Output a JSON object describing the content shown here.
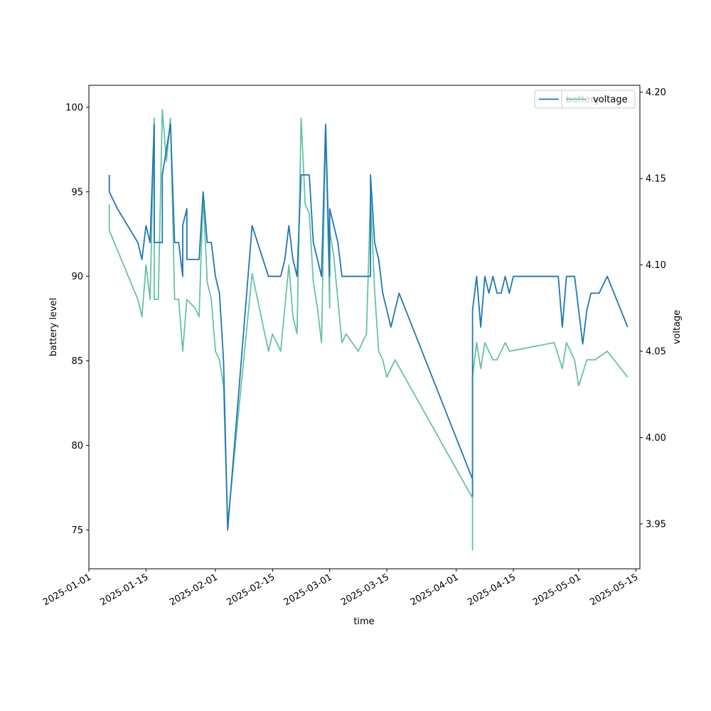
{
  "chart_data": {
    "type": "line",
    "xlabel": "time",
    "ylabel_left": "battery level",
    "ylabel_right": "voltage",
    "x_ticks": [
      "2025-01-01",
      "2025-01-15",
      "2025-02-01",
      "2025-02-15",
      "2025-03-01",
      "2025-03-15",
      "2025-04-01",
      "2025-04-15",
      "2025-05-01",
      "2025-05-15"
    ],
    "xlim": [
      "2025-01-01",
      "2025-05-16"
    ],
    "ylim_left": [
      72.7,
      101.3
    ],
    "ylim_right": [
      3.924,
      4.204
    ],
    "y_ticks_left": [
      75,
      80,
      85,
      90,
      95,
      100
    ],
    "y_ticks_right": [
      3.95,
      4.0,
      4.05,
      4.1,
      4.15,
      4.2
    ],
    "grid": false,
    "legends": [
      {
        "entries": [
          "battery"
        ],
        "location": "upper-right",
        "color": "#1f77b4"
      },
      {
        "entries": [
          "voltage"
        ],
        "location": "upper-right",
        "color": "#66c2a5"
      }
    ],
    "series": [
      {
        "name": "battery",
        "axis": "left",
        "color": "#1f77b4",
        "points": [
          [
            "2025-01-06",
            96
          ],
          [
            "2025-01-06",
            95
          ],
          [
            "2025-01-08",
            94
          ],
          [
            "2025-01-13",
            92
          ],
          [
            "2025-01-14",
            91
          ],
          [
            "2025-01-15",
            93
          ],
          [
            "2025-01-16",
            92
          ],
          [
            "2025-01-17",
            99
          ],
          [
            "2025-01-17",
            92
          ],
          [
            "2025-01-18",
            92
          ],
          [
            "2025-01-19",
            92
          ],
          [
            "2025-01-19",
            96
          ],
          [
            "2025-01-21",
            99
          ],
          [
            "2025-01-22",
            92
          ],
          [
            "2025-01-23",
            92
          ],
          [
            "2025-01-24",
            90
          ],
          [
            "2025-01-24",
            93
          ],
          [
            "2025-01-25",
            94
          ],
          [
            "2025-01-25",
            91
          ],
          [
            "2025-01-28",
            91
          ],
          [
            "2025-01-29",
            95
          ],
          [
            "2025-01-30",
            92
          ],
          [
            "2025-01-31",
            92
          ],
          [
            "2025-02-01",
            90
          ],
          [
            "2025-02-02",
            89
          ],
          [
            "2025-02-03",
            85
          ],
          [
            "2025-02-04",
            75
          ],
          [
            "2025-02-10",
            93
          ],
          [
            "2025-02-14",
            90
          ],
          [
            "2025-02-17",
            90
          ],
          [
            "2025-02-18",
            91
          ],
          [
            "2025-02-19",
            93
          ],
          [
            "2025-02-20",
            91
          ],
          [
            "2025-02-21",
            90
          ],
          [
            "2025-02-22",
            96
          ],
          [
            "2025-02-24",
            96
          ],
          [
            "2025-02-25",
            92
          ],
          [
            "2025-02-26",
            91
          ],
          [
            "2025-02-27",
            90
          ],
          [
            "2025-02-28",
            99
          ],
          [
            "2025-02-29",
            90
          ],
          [
            "2025-03-01",
            94
          ],
          [
            "2025-03-03",
            92
          ],
          [
            "2025-03-04",
            90
          ],
          [
            "2025-03-11",
            90
          ],
          [
            "2025-03-11",
            96
          ],
          [
            "2025-03-12",
            92
          ],
          [
            "2025-03-13",
            91
          ],
          [
            "2025-03-14",
            89
          ],
          [
            "2025-03-15",
            88
          ],
          [
            "2025-03-16",
            87
          ],
          [
            "2025-03-18",
            89
          ],
          [
            "2025-04-05",
            78
          ],
          [
            "2025-04-05",
            77
          ],
          [
            "2025-04-05",
            88
          ],
          [
            "2025-04-06",
            90
          ],
          [
            "2025-04-07",
            87
          ],
          [
            "2025-04-08",
            90
          ],
          [
            "2025-04-09",
            89
          ],
          [
            "2025-04-10",
            90
          ],
          [
            "2025-04-11",
            89
          ],
          [
            "2025-04-12",
            89
          ],
          [
            "2025-04-13",
            90
          ],
          [
            "2025-04-14",
            89
          ],
          [
            "2025-04-15",
            90
          ],
          [
            "2025-04-26",
            90
          ],
          [
            "2025-04-27",
            87
          ],
          [
            "2025-04-28",
            90
          ],
          [
            "2025-04-30",
            90
          ],
          [
            "2025-05-01",
            88
          ],
          [
            "2025-05-02",
            86
          ],
          [
            "2025-05-03",
            88
          ],
          [
            "2025-05-04",
            89
          ],
          [
            "2025-05-06",
            89
          ],
          [
            "2025-05-08",
            90
          ],
          [
            "2025-05-13",
            87
          ]
        ]
      },
      {
        "name": "voltage",
        "axis": "right",
        "color": "#66c2a5",
        "points": [
          [
            "2025-01-06",
            4.135
          ],
          [
            "2025-01-06",
            4.12
          ],
          [
            "2025-01-13",
            4.08
          ],
          [
            "2025-01-14",
            4.07
          ],
          [
            "2025-01-15",
            4.1
          ],
          [
            "2025-01-16",
            4.08
          ],
          [
            "2025-01-17",
            4.185
          ],
          [
            "2025-01-17",
            4.08
          ],
          [
            "2025-01-18",
            4.08
          ],
          [
            "2025-01-19",
            4.19
          ],
          [
            "2025-01-20",
            4.16
          ],
          [
            "2025-01-21",
            4.185
          ],
          [
            "2025-01-22",
            4.08
          ],
          [
            "2025-01-23",
            4.08
          ],
          [
            "2025-01-24",
            4.05
          ],
          [
            "2025-01-25",
            4.08
          ],
          [
            "2025-01-27",
            4.075
          ],
          [
            "2025-01-28",
            4.07
          ],
          [
            "2025-01-29",
            4.14
          ],
          [
            "2025-01-30",
            4.09
          ],
          [
            "2025-01-31",
            4.08
          ],
          [
            "2025-02-01",
            4.05
          ],
          [
            "2025-02-02",
            4.045
          ],
          [
            "2025-02-03",
            4.03
          ],
          [
            "2025-02-04",
            3.95
          ],
          [
            "2025-02-10",
            4.095
          ],
          [
            "2025-02-14",
            4.05
          ],
          [
            "2025-02-15",
            4.06
          ],
          [
            "2025-02-17",
            4.05
          ],
          [
            "2025-02-19",
            4.1
          ],
          [
            "2025-02-20",
            4.07
          ],
          [
            "2025-02-21",
            4.06
          ],
          [
            "2025-02-22",
            4.185
          ],
          [
            "2025-02-23",
            4.135
          ],
          [
            "2025-02-24",
            4.13
          ],
          [
            "2025-02-25",
            4.09
          ],
          [
            "2025-02-26",
            4.075
          ],
          [
            "2025-02-27",
            4.055
          ],
          [
            "2025-02-28",
            4.18
          ],
          [
            "2025-02-29",
            4.075
          ],
          [
            "2025-03-01",
            4.12
          ],
          [
            "2025-03-02",
            4.105
          ],
          [
            "2025-03-03",
            4.08
          ],
          [
            "2025-03-04",
            4.055
          ],
          [
            "2025-03-05",
            4.06
          ],
          [
            "2025-03-08",
            4.05
          ],
          [
            "2025-03-09",
            4.055
          ],
          [
            "2025-03-10",
            4.06
          ],
          [
            "2025-03-11",
            4.14
          ],
          [
            "2025-03-12",
            4.085
          ],
          [
            "2025-03-13",
            4.05
          ],
          [
            "2025-03-14",
            4.045
          ],
          [
            "2025-03-15",
            4.035
          ],
          [
            "2025-03-17",
            4.045
          ],
          [
            "2025-04-05",
            3.965
          ],
          [
            "2025-04-05",
            3.935
          ],
          [
            "2025-04-05",
            4.035
          ],
          [
            "2025-04-06",
            4.055
          ],
          [
            "2025-04-07",
            4.04
          ],
          [
            "2025-04-08",
            4.055
          ],
          [
            "2025-04-09",
            4.05
          ],
          [
            "2025-04-10",
            4.045
          ],
          [
            "2025-04-11",
            4.045
          ],
          [
            "2025-04-12",
            4.05
          ],
          [
            "2025-04-13",
            4.055
          ],
          [
            "2025-04-14",
            4.05
          ],
          [
            "2025-04-25",
            4.055
          ],
          [
            "2025-04-27",
            4.04
          ],
          [
            "2025-04-28",
            4.055
          ],
          [
            "2025-04-29",
            4.05
          ],
          [
            "2025-04-30",
            4.045
          ],
          [
            "2025-05-01",
            4.03
          ],
          [
            "2025-05-03",
            4.045
          ],
          [
            "2025-05-05",
            4.045
          ],
          [
            "2025-05-08",
            4.05
          ],
          [
            "2025-05-13",
            4.035
          ]
        ]
      }
    ]
  }
}
